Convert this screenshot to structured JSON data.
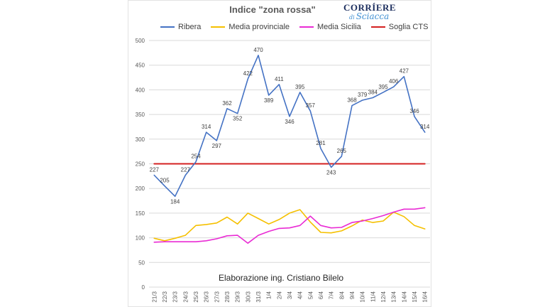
{
  "header": {
    "title": "Indice \"zona rossa\"",
    "logo_top": "CORRÍERE",
    "logo_small": "di",
    "logo_bottom": "Sciacca"
  },
  "caption": "Elaborazione ing. Cristiano Bilelo",
  "chart_data": {
    "type": "line",
    "title": "Indice \"zona rossa\"",
    "xlabel": "",
    "ylabel": "",
    "ylim": [
      0,
      500
    ],
    "yticks": [
      "0",
      "50",
      "100",
      "150",
      "200",
      "250",
      "300",
      "350",
      "400",
      "450",
      "500"
    ],
    "grid": "horizontal",
    "legend": "top",
    "categories": [
      "21/3",
      "22/3",
      "23/3",
      "24/3",
      "25/3",
      "26/3",
      "27/3",
      "28/3",
      "29/3",
      "30/3",
      "31/3",
      "1/4",
      "2/4",
      "3/4",
      "4/4",
      "5/4",
      "6/4",
      "7/4",
      "8/4",
      "9/4",
      "10/4",
      "11/4",
      "12/4",
      "13/4",
      "14/4",
      "15/4",
      "16/4"
    ],
    "series": [
      {
        "name": "Ribera",
        "color": "#4472c4",
        "values": [
          227,
          205,
          184,
          227,
          254,
          314,
          297,
          362,
          352,
          422,
          470,
          389,
          411,
          346,
          395,
          357,
          281,
          243,
          265,
          368,
          379,
          384,
          395,
          406,
          427,
          346,
          314
        ],
        "labels": [
          "227",
          "205",
          "184",
          "227",
          "254",
          "314",
          "297",
          "362",
          "352",
          "422",
          "470",
          "389",
          "411",
          "346",
          "395",
          "357",
          "281",
          "243",
          "265",
          "368",
          "379",
          "384",
          "395",
          "406",
          "427",
          "346",
          "314"
        ]
      },
      {
        "name": "Media provinciale",
        "color": "#f5c000",
        "values": [
          99,
          94,
          99,
          105,
          125,
          127,
          130,
          142,
          128,
          150,
          139,
          128,
          137,
          150,
          157,
          132,
          111,
          110,
          114,
          124,
          136,
          131,
          134,
          152,
          143,
          125,
          118
        ]
      },
      {
        "name": "Media Sicilia",
        "color": "#e92bd4",
        "values": [
          91,
          92,
          92,
          92,
          92,
          94,
          98,
          104,
          105,
          89,
          105,
          113,
          119,
          120,
          125,
          144,
          125,
          120,
          121,
          131,
          134,
          139,
          145,
          152,
          158,
          158,
          161
        ]
      },
      {
        "name": "Soglia CTS",
        "color": "#d42020",
        "values": [
          250,
          250,
          250,
          250,
          250,
          250,
          250,
          250,
          250,
          250,
          250,
          250,
          250,
          250,
          250,
          250,
          250,
          250,
          250,
          250,
          250,
          250,
          250,
          250,
          250,
          250,
          250
        ]
      }
    ]
  }
}
